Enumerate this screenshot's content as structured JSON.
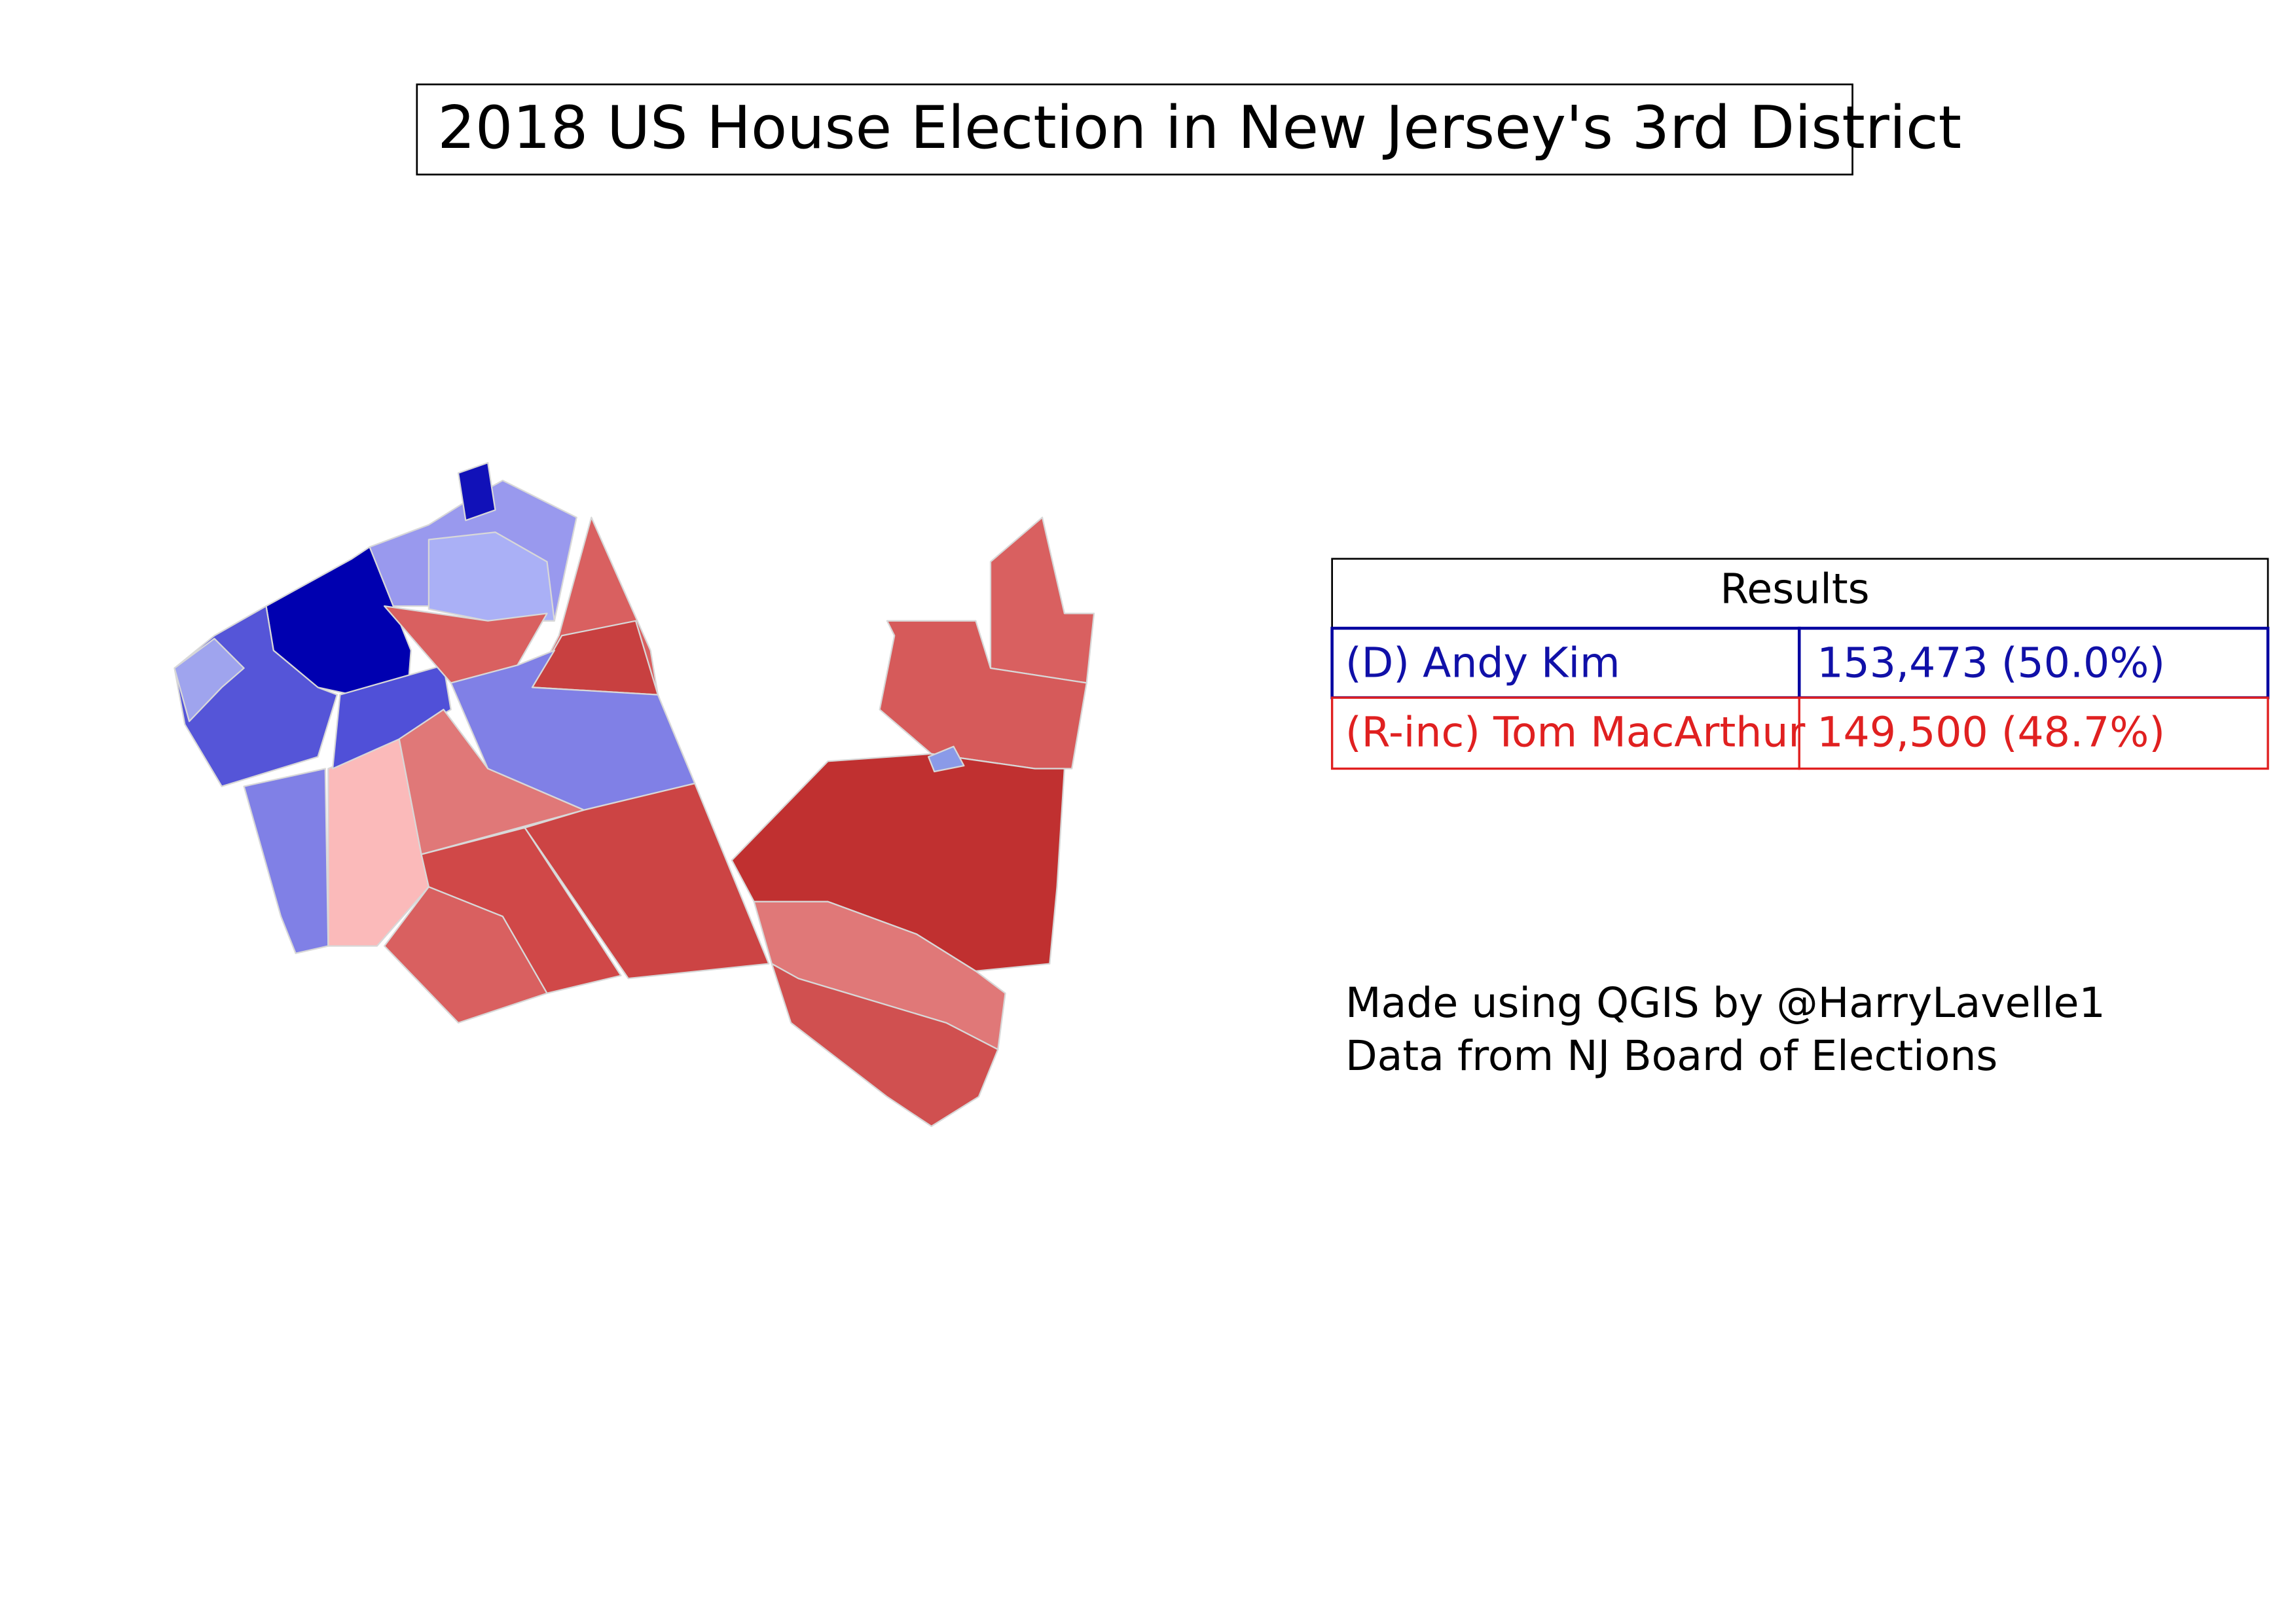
{
  "title": "2018 US House Election in New Jersey's 3rd District",
  "results": {
    "header": "Results",
    "rows": [
      [
        "(D) Andy Kim",
        "153,473 (50.0%)"
      ],
      [
        "(R-inc) Tom MacArthur",
        "149,500 (48.7%)"
      ]
    ]
  },
  "credits": [
    "Made using QGIS by @HarryLavelle1",
    "Data from NJ Board of Elections"
  ]
}
